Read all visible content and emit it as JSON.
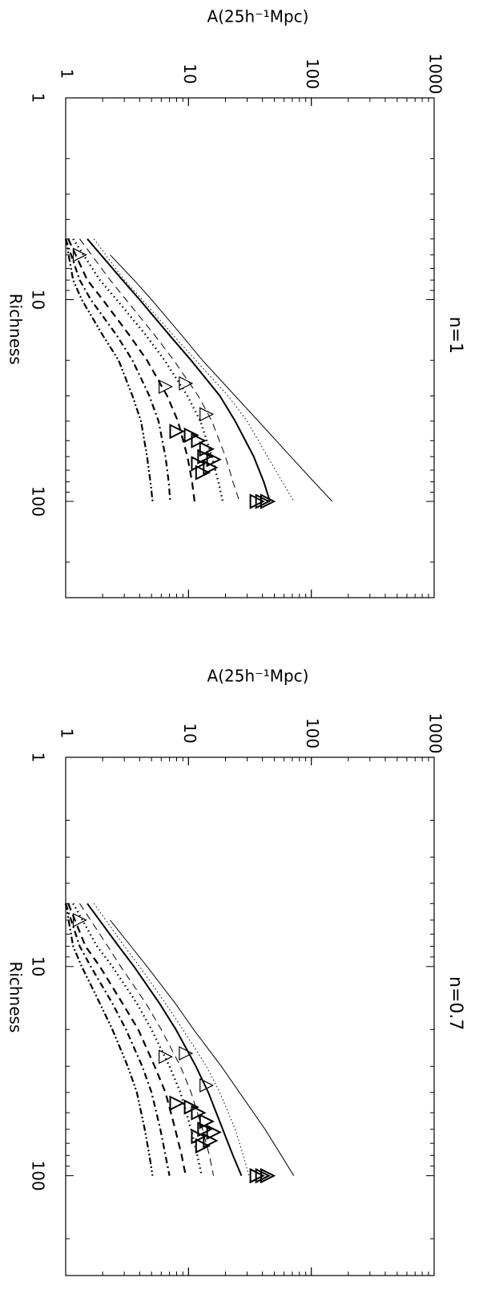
{
  "chart_data": [
    {
      "type": "line",
      "panel_label": "n=1",
      "xlabel": "Richness",
      "ylabel": "A(25h⁻¹Mpc)",
      "x_scale": "log",
      "y_scale": "log",
      "xlim": [
        1,
        300
      ],
      "ylim": [
        1,
        1000
      ],
      "x_ticks": [
        {
          "value": 1,
          "label": "1"
        },
        {
          "value": 10,
          "label": "10"
        },
        {
          "value": 100,
          "label": "100"
        }
      ],
      "y_ticks": [
        {
          "value": 1,
          "label": "1"
        },
        {
          "value": 10,
          "label": "10"
        },
        {
          "value": 100,
          "label": "100"
        },
        {
          "value": 1000,
          "label": "1000"
        }
      ],
      "series": [
        {
          "style": "solid-thin",
          "x": [
            6,
            8,
            10,
            15,
            20,
            30,
            40,
            60,
            80,
            100
          ],
          "y": [
            2.3,
            3.6,
            5.0,
            8.8,
            13,
            24,
            37,
            68,
            105,
            148
          ]
        },
        {
          "style": "dotted-thin",
          "x": [
            5,
            8,
            10,
            15,
            20,
            30,
            40,
            60,
            80,
            100
          ],
          "y": [
            1.7,
            3.0,
            4.2,
            7.5,
            11.5,
            21,
            30,
            44,
            58,
            72
          ]
        },
        {
          "style": "solid-thick",
          "x": [
            5,
            8,
            10,
            15,
            20,
            30,
            40,
            60,
            80,
            100
          ],
          "y": [
            1.5,
            2.9,
            4.0,
            7.0,
            10.5,
            18,
            24,
            34,
            41,
            46
          ]
        },
        {
          "style": "dashed-thin",
          "x": [
            5,
            8,
            10,
            15,
            20,
            30,
            40,
            60,
            80,
            100
          ],
          "y": [
            1.3,
            2.3,
            3.1,
            5.3,
            7.6,
            12,
            15.5,
            20,
            23,
            26
          ]
        },
        {
          "style": "dotted-thick",
          "x": [
            5,
            8,
            10,
            15,
            20,
            30,
            40,
            60,
            80,
            100
          ],
          "y": [
            1.15,
            1.9,
            2.6,
            4.5,
            6.4,
            9.8,
            12.5,
            15.5,
            17.5,
            19
          ]
        },
        {
          "style": "dashed-thick",
          "x": [
            5,
            8,
            10,
            15,
            20,
            30,
            40,
            60,
            80,
            100
          ],
          "y": [
            1.05,
            1.5,
            2.0,
            3.3,
            4.6,
            6.7,
            8.2,
            9.8,
            10.7,
            11.2
          ]
        },
        {
          "style": "dashdot-thick",
          "x": [
            5,
            8,
            10,
            15,
            20,
            30,
            40,
            60,
            80,
            100
          ],
          "y": [
            1.0,
            1.3,
            1.6,
            2.6,
            3.5,
            4.8,
            5.7,
            6.5,
            6.9,
            7.1
          ]
        },
        {
          "style": "dashdotdot-thick",
          "x": [
            5,
            8,
            10,
            15,
            20,
            30,
            40,
            60,
            80,
            100
          ],
          "y": [
            1.0,
            1.15,
            1.35,
            2.0,
            2.7,
            3.5,
            4.1,
            4.6,
            4.9,
            5.1
          ]
        }
      ],
      "points": [
        {
          "x": 6,
          "y": 1.3,
          "size": 1
        },
        {
          "x": 27,
          "y": 6.5,
          "size": 1
        },
        {
          "x": 26,
          "y": 9.5,
          "size": 1
        },
        {
          "x": 37,
          "y": 14,
          "size": 1
        },
        {
          "x": 45,
          "y": 8,
          "size": 2
        },
        {
          "x": 47,
          "y": 10.5,
          "size": 2
        },
        {
          "x": 50,
          "y": 12,
          "size": 2
        },
        {
          "x": 55,
          "y": 14,
          "size": 2
        },
        {
          "x": 60,
          "y": 13.5,
          "size": 2
        },
        {
          "x": 62,
          "y": 16,
          "size": 2
        },
        {
          "x": 65,
          "y": 12,
          "size": 2
        },
        {
          "x": 68,
          "y": 15,
          "size": 2
        },
        {
          "x": 72,
          "y": 13,
          "size": 2
        },
        {
          "x": 100,
          "y": 36,
          "size": 2
        },
        {
          "x": 100,
          "y": 40,
          "size": 2
        },
        {
          "x": 100,
          "y": 44,
          "size": 2
        }
      ]
    },
    {
      "type": "line",
      "panel_label": "n=0.7",
      "xlabel": "Richness",
      "ylabel": "A(25h⁻¹Mpc)",
      "x_scale": "log",
      "y_scale": "log",
      "xlim": [
        1,
        300
      ],
      "ylim": [
        1,
        1000
      ],
      "x_ticks": [
        {
          "value": 1,
          "label": "1"
        },
        {
          "value": 10,
          "label": "10"
        },
        {
          "value": 100,
          "label": "100"
        }
      ],
      "y_ticks": [
        {
          "value": 1,
          "label": "1"
        },
        {
          "value": 10,
          "label": "10"
        },
        {
          "value": 100,
          "label": "100"
        },
        {
          "value": 1000,
          "label": "1000"
        }
      ],
      "series": [
        {
          "style": "solid-thin",
          "x": [
            6,
            8,
            10,
            15,
            20,
            30,
            40,
            60,
            80,
            100
          ],
          "y": [
            2.3,
            3.4,
            4.6,
            7.8,
            11,
            18.5,
            26,
            42,
            57,
            72
          ]
        },
        {
          "style": "dotted-thin",
          "x": [
            5,
            8,
            10,
            15,
            20,
            30,
            40,
            60,
            80,
            100
          ],
          "y": [
            1.7,
            3.0,
            4.0,
            6.5,
            9,
            14,
            18,
            24,
            28,
            31
          ]
        },
        {
          "style": "solid-thick",
          "x": [
            5,
            8,
            10,
            15,
            20,
            30,
            40,
            60,
            80,
            100
          ],
          "y": [
            1.5,
            2.7,
            3.6,
            5.8,
            7.9,
            11.5,
            14.5,
            19,
            23,
            27
          ]
        },
        {
          "style": "dashed-thin",
          "x": [
            5,
            8,
            10,
            15,
            20,
            30,
            40,
            60,
            80,
            100
          ],
          "y": [
            1.3,
            2.2,
            2.8,
            4.5,
            6.0,
            8.6,
            10.5,
            13,
            14.8,
            16
          ]
        },
        {
          "style": "dotted-thick",
          "x": [
            5,
            8,
            10,
            15,
            20,
            30,
            40,
            60,
            80,
            100
          ],
          "y": [
            1.15,
            1.8,
            2.4,
            3.8,
            5.0,
            7.0,
            8.6,
            10.5,
            11.8,
            12.8
          ]
        },
        {
          "style": "dashed-thick",
          "x": [
            5,
            8,
            10,
            15,
            20,
            30,
            40,
            60,
            80,
            100
          ],
          "y": [
            1.05,
            1.45,
            1.9,
            2.9,
            3.9,
            5.3,
            6.5,
            7.8,
            8.8,
            9.5
          ]
        },
        {
          "style": "dashdot-thick",
          "x": [
            5,
            8,
            10,
            15,
            20,
            30,
            40,
            60,
            80,
            100
          ],
          "y": [
            1.0,
            1.3,
            1.6,
            2.4,
            3.1,
            4.2,
            5.0,
            5.9,
            6.5,
            7.0
          ]
        },
        {
          "style": "dashdotdot-thick",
          "x": [
            5,
            8,
            10,
            15,
            20,
            30,
            40,
            60,
            80,
            100
          ],
          "y": [
            1.0,
            1.15,
            1.35,
            1.9,
            2.4,
            3.2,
            3.8,
            4.4,
            4.8,
            5.1
          ]
        }
      ],
      "points": [
        {
          "x": 6,
          "y": 1.3,
          "size": 1
        },
        {
          "x": 27,
          "y": 6.5,
          "size": 1
        },
        {
          "x": 26,
          "y": 9.5,
          "size": 1
        },
        {
          "x": 37,
          "y": 14,
          "size": 1
        },
        {
          "x": 45,
          "y": 8,
          "size": 2
        },
        {
          "x": 47,
          "y": 10.5,
          "size": 2
        },
        {
          "x": 50,
          "y": 12,
          "size": 2
        },
        {
          "x": 55,
          "y": 14,
          "size": 2
        },
        {
          "x": 60,
          "y": 13.5,
          "size": 2
        },
        {
          "x": 62,
          "y": 16,
          "size": 2
        },
        {
          "x": 65,
          "y": 12,
          "size": 2
        },
        {
          "x": 68,
          "y": 15,
          "size": 2
        },
        {
          "x": 72,
          "y": 13,
          "size": 2
        },
        {
          "x": 100,
          "y": 36,
          "size": 2
        },
        {
          "x": 100,
          "y": 40,
          "size": 2
        },
        {
          "x": 100,
          "y": 44,
          "size": 2
        }
      ]
    }
  ]
}
